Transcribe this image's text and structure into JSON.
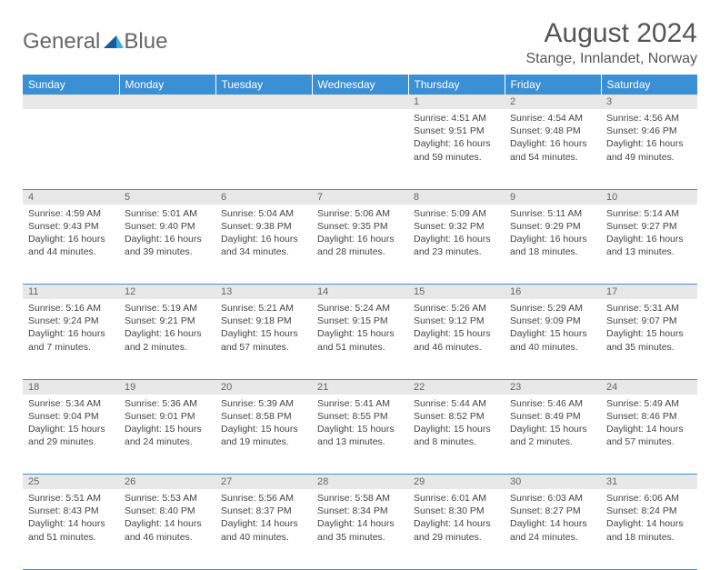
{
  "brand": {
    "part1": "General",
    "part2": "Blue"
  },
  "title": "August 2024",
  "location": "Stange, Innlandet, Norway",
  "colors": {
    "header_bg": "#3b8fd4",
    "daynum_bg": "#e8e8e8",
    "text": "#444444",
    "title": "#555555",
    "brand_blue": "#3bb0e0"
  },
  "weekdays": [
    "Sunday",
    "Monday",
    "Tuesday",
    "Wednesday",
    "Thursday",
    "Friday",
    "Saturday"
  ],
  "weeks": [
    [
      null,
      null,
      null,
      null,
      {
        "d": "1",
        "sr": "4:51 AM",
        "ss": "9:51 PM",
        "dl": "16 hours and 59 minutes."
      },
      {
        "d": "2",
        "sr": "4:54 AM",
        "ss": "9:48 PM",
        "dl": "16 hours and 54 minutes."
      },
      {
        "d": "3",
        "sr": "4:56 AM",
        "ss": "9:46 PM",
        "dl": "16 hours and 49 minutes."
      }
    ],
    [
      {
        "d": "4",
        "sr": "4:59 AM",
        "ss": "9:43 PM",
        "dl": "16 hours and 44 minutes."
      },
      {
        "d": "5",
        "sr": "5:01 AM",
        "ss": "9:40 PM",
        "dl": "16 hours and 39 minutes."
      },
      {
        "d": "6",
        "sr": "5:04 AM",
        "ss": "9:38 PM",
        "dl": "16 hours and 34 minutes."
      },
      {
        "d": "7",
        "sr": "5:06 AM",
        "ss": "9:35 PM",
        "dl": "16 hours and 28 minutes."
      },
      {
        "d": "8",
        "sr": "5:09 AM",
        "ss": "9:32 PM",
        "dl": "16 hours and 23 minutes."
      },
      {
        "d": "9",
        "sr": "5:11 AM",
        "ss": "9:29 PM",
        "dl": "16 hours and 18 minutes."
      },
      {
        "d": "10",
        "sr": "5:14 AM",
        "ss": "9:27 PM",
        "dl": "16 hours and 13 minutes."
      }
    ],
    [
      {
        "d": "11",
        "sr": "5:16 AM",
        "ss": "9:24 PM",
        "dl": "16 hours and 7 minutes."
      },
      {
        "d": "12",
        "sr": "5:19 AM",
        "ss": "9:21 PM",
        "dl": "16 hours and 2 minutes."
      },
      {
        "d": "13",
        "sr": "5:21 AM",
        "ss": "9:18 PM",
        "dl": "15 hours and 57 minutes."
      },
      {
        "d": "14",
        "sr": "5:24 AM",
        "ss": "9:15 PM",
        "dl": "15 hours and 51 minutes."
      },
      {
        "d": "15",
        "sr": "5:26 AM",
        "ss": "9:12 PM",
        "dl": "15 hours and 46 minutes."
      },
      {
        "d": "16",
        "sr": "5:29 AM",
        "ss": "9:09 PM",
        "dl": "15 hours and 40 minutes."
      },
      {
        "d": "17",
        "sr": "5:31 AM",
        "ss": "9:07 PM",
        "dl": "15 hours and 35 minutes."
      }
    ],
    [
      {
        "d": "18",
        "sr": "5:34 AM",
        "ss": "9:04 PM",
        "dl": "15 hours and 29 minutes."
      },
      {
        "d": "19",
        "sr": "5:36 AM",
        "ss": "9:01 PM",
        "dl": "15 hours and 24 minutes."
      },
      {
        "d": "20",
        "sr": "5:39 AM",
        "ss": "8:58 PM",
        "dl": "15 hours and 19 minutes."
      },
      {
        "d": "21",
        "sr": "5:41 AM",
        "ss": "8:55 PM",
        "dl": "15 hours and 13 minutes."
      },
      {
        "d": "22",
        "sr": "5:44 AM",
        "ss": "8:52 PM",
        "dl": "15 hours and 8 minutes."
      },
      {
        "d": "23",
        "sr": "5:46 AM",
        "ss": "8:49 PM",
        "dl": "15 hours and 2 minutes."
      },
      {
        "d": "24",
        "sr": "5:49 AM",
        "ss": "8:46 PM",
        "dl": "14 hours and 57 minutes."
      }
    ],
    [
      {
        "d": "25",
        "sr": "5:51 AM",
        "ss": "8:43 PM",
        "dl": "14 hours and 51 minutes."
      },
      {
        "d": "26",
        "sr": "5:53 AM",
        "ss": "8:40 PM",
        "dl": "14 hours and 46 minutes."
      },
      {
        "d": "27",
        "sr": "5:56 AM",
        "ss": "8:37 PM",
        "dl": "14 hours and 40 minutes."
      },
      {
        "d": "28",
        "sr": "5:58 AM",
        "ss": "8:34 PM",
        "dl": "14 hours and 35 minutes."
      },
      {
        "d": "29",
        "sr": "6:01 AM",
        "ss": "8:30 PM",
        "dl": "14 hours and 29 minutes."
      },
      {
        "d": "30",
        "sr": "6:03 AM",
        "ss": "8:27 PM",
        "dl": "14 hours and 24 minutes."
      },
      {
        "d": "31",
        "sr": "6:06 AM",
        "ss": "8:24 PM",
        "dl": "14 hours and 18 minutes."
      }
    ]
  ],
  "labels": {
    "sunrise": "Sunrise: ",
    "sunset": "Sunset: ",
    "daylight": "Daylight: "
  }
}
